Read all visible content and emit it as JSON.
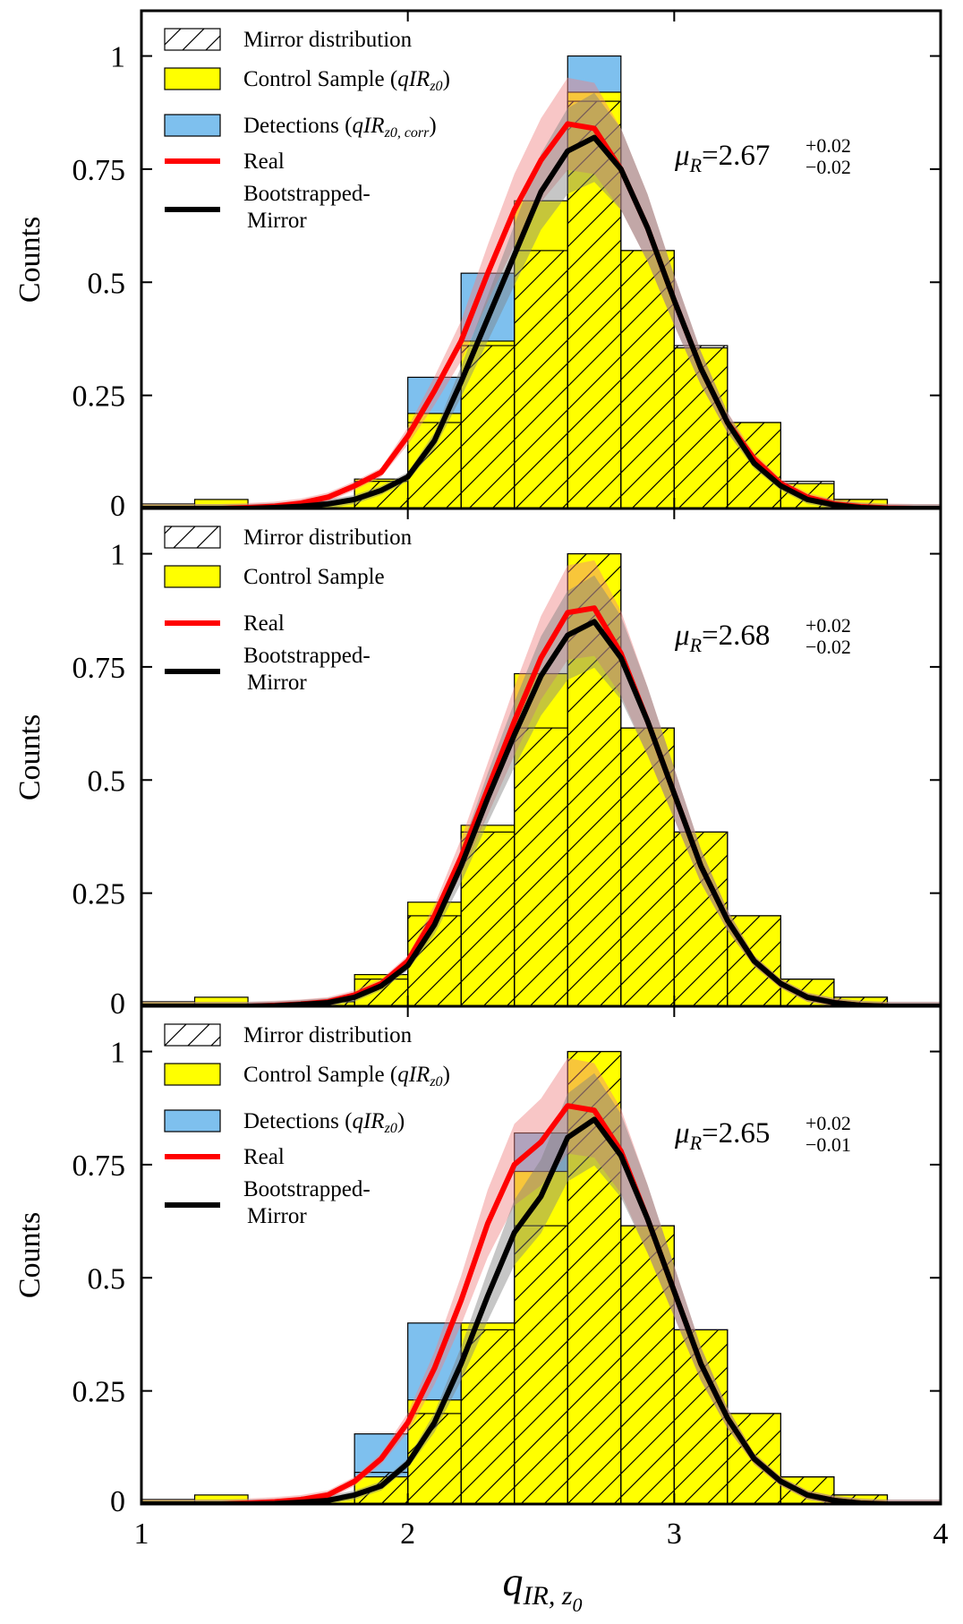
{
  "chart_data": [
    {
      "type": "bar",
      "panel": "top",
      "ylabel": "Counts",
      "xlim": [
        1,
        4
      ],
      "ylim": [
        0,
        1.1
      ],
      "yticks": [
        "0",
        "0.25",
        "0.5",
        "0.75",
        "1"
      ],
      "bin_edges": [
        1.0,
        1.2,
        1.4,
        1.6,
        1.8,
        2.0,
        2.2,
        2.4,
        2.6,
        2.8,
        3.0,
        3.2,
        3.4,
        3.6,
        3.8
      ],
      "series": [
        {
          "name": "Mirror distribution",
          "values": [
            0,
            0,
            0,
            0,
            0.06,
            0.19,
            0.36,
            0.57,
            0.9,
            0.57,
            0.36,
            0.19,
            0.06,
            0.02
          ]
        },
        {
          "name": "Control Sample",
          "values": [
            0.01,
            0.02,
            0.005,
            0.015,
            0.065,
            0.21,
            0.37,
            0.68,
            0.92,
            0.57,
            0.355,
            0.19,
            0.055,
            0.02
          ]
        },
        {
          "name": "Detections",
          "values": [
            0,
            0,
            0,
            0,
            0,
            0.29,
            0.52,
            0,
            1.0,
            0,
            0,
            0,
            0,
            0
          ]
        }
      ],
      "lines": [
        {
          "name": "Real",
          "x": [
            1.0,
            1.1,
            1.2,
            1.3,
            1.4,
            1.5,
            1.6,
            1.7,
            1.8,
            1.9,
            2.0,
            2.1,
            2.2,
            2.3,
            2.4,
            2.5,
            2.6,
            2.7,
            2.8,
            2.9,
            3.0,
            3.1,
            3.2,
            3.3,
            3.4,
            3.5,
            3.6,
            3.7,
            3.8,
            3.9,
            4.0
          ],
          "y": [
            0,
            0,
            0,
            0,
            0.002,
            0.005,
            0.012,
            0.025,
            0.05,
            0.08,
            0.16,
            0.26,
            0.37,
            0.52,
            0.66,
            0.77,
            0.85,
            0.84,
            0.75,
            0.62,
            0.46,
            0.31,
            0.19,
            0.11,
            0.055,
            0.025,
            0.01,
            0.004,
            0.001,
            0,
            0
          ]
        },
        {
          "name": "Bootstrapped-Mirror",
          "x": [
            1.0,
            1.1,
            1.2,
            1.3,
            1.4,
            1.5,
            1.6,
            1.7,
            1.8,
            1.9,
            2.0,
            2.1,
            2.2,
            2.3,
            2.4,
            2.5,
            2.6,
            2.7,
            2.8,
            2.9,
            3.0,
            3.1,
            3.2,
            3.3,
            3.4,
            3.5,
            3.6,
            3.7,
            3.8,
            3.9,
            4.0
          ],
          "y": [
            0,
            0,
            0,
            0,
            0,
            0.002,
            0.005,
            0.01,
            0.02,
            0.04,
            0.07,
            0.15,
            0.28,
            0.42,
            0.56,
            0.7,
            0.79,
            0.82,
            0.75,
            0.62,
            0.46,
            0.31,
            0.19,
            0.1,
            0.05,
            0.02,
            0.008,
            0.002,
            0,
            0,
            0
          ]
        }
      ],
      "legend": [
        "Mirror distribution",
        "Control Sample",
        "Detections",
        "Real",
        "Bootstrapped-",
        "Mirror"
      ],
      "control_math": "qIR",
      "control_math_sub": "z0",
      "detections_math": "qIR",
      "detections_math_sub": "z0, corr",
      "mu_prefix": "μ",
      "mu_sub": "R",
      "mu_value": "=2.67",
      "mu_plus": "+0.02",
      "mu_minus": "−0.02"
    },
    {
      "type": "bar",
      "panel": "middle",
      "ylabel": "Counts",
      "xlim": [
        1,
        4
      ],
      "ylim": [
        0,
        1.1
      ],
      "yticks": [
        "0",
        "0.25",
        "0.5",
        "0.75",
        "1"
      ],
      "bin_edges": [
        1.0,
        1.2,
        1.4,
        1.6,
        1.8,
        2.0,
        2.2,
        2.4,
        2.6,
        2.8,
        3.0,
        3.2,
        3.4,
        3.6,
        3.8
      ],
      "series": [
        {
          "name": "Mirror distribution",
          "values": [
            0,
            0,
            0,
            0.01,
            0.06,
            0.2,
            0.385,
            0.615,
            1.0,
            0.615,
            0.385,
            0.2,
            0.06,
            0.02
          ]
        },
        {
          "name": "Control Sample",
          "values": [
            0.01,
            0.02,
            0.005,
            0.01,
            0.07,
            0.23,
            0.4,
            0.735,
            1.0,
            0.615,
            0.385,
            0.2,
            0.06,
            0.02
          ]
        }
      ],
      "lines": [
        {
          "name": "Real",
          "x": [
            1.0,
            1.1,
            1.2,
            1.3,
            1.4,
            1.5,
            1.6,
            1.7,
            1.8,
            1.9,
            2.0,
            2.1,
            2.2,
            2.3,
            2.4,
            2.5,
            2.6,
            2.7,
            2.8,
            2.9,
            3.0,
            3.1,
            3.2,
            3.3,
            3.4,
            3.5,
            3.6,
            3.7,
            3.8,
            3.9,
            4.0
          ],
          "y": [
            0,
            0,
            0,
            0,
            0,
            0.002,
            0.005,
            0.01,
            0.025,
            0.05,
            0.1,
            0.2,
            0.33,
            0.48,
            0.63,
            0.77,
            0.87,
            0.88,
            0.78,
            0.63,
            0.47,
            0.31,
            0.19,
            0.1,
            0.05,
            0.02,
            0.008,
            0.002,
            0,
            0,
            0
          ]
        },
        {
          "name": "Bootstrapped-Mirror",
          "x": [
            1.0,
            1.1,
            1.2,
            1.3,
            1.4,
            1.5,
            1.6,
            1.7,
            1.8,
            1.9,
            2.0,
            2.1,
            2.2,
            2.3,
            2.4,
            2.5,
            2.6,
            2.7,
            2.8,
            2.9,
            3.0,
            3.1,
            3.2,
            3.3,
            3.4,
            3.5,
            3.6,
            3.7,
            3.8,
            3.9,
            4.0
          ],
          "y": [
            0,
            0,
            0,
            0,
            0,
            0.001,
            0.004,
            0.008,
            0.02,
            0.045,
            0.09,
            0.18,
            0.31,
            0.46,
            0.6,
            0.73,
            0.82,
            0.85,
            0.77,
            0.63,
            0.47,
            0.31,
            0.19,
            0.1,
            0.05,
            0.02,
            0.008,
            0.002,
            0,
            0,
            0
          ]
        }
      ],
      "legend": [
        "Mirror distribution",
        "Control Sample",
        "Real",
        "Bootstrapped-",
        "Mirror"
      ],
      "mu_prefix": "μ",
      "mu_sub": "R",
      "mu_value": "=2.68",
      "mu_plus": "+0.02",
      "mu_minus": "−0.02"
    },
    {
      "type": "bar",
      "panel": "bottom",
      "ylabel": "Counts",
      "xlabel": "qIR, z0",
      "xlabel_main": "q",
      "xlabel_sub": "IR, z",
      "xlabel_subsub": "0",
      "xlim": [
        1,
        4
      ],
      "ylim": [
        0,
        1.1
      ],
      "xticks": [
        "1",
        "2",
        "3",
        "4"
      ],
      "yticks": [
        "0",
        "0.25",
        "0.5",
        "0.75",
        "1"
      ],
      "bin_edges": [
        1.0,
        1.2,
        1.4,
        1.6,
        1.8,
        2.0,
        2.2,
        2.4,
        2.6,
        2.8,
        3.0,
        3.2,
        3.4,
        3.6,
        3.8
      ],
      "series": [
        {
          "name": "Mirror distribution",
          "values": [
            0,
            0,
            0,
            0,
            0.07,
            0.2,
            0.385,
            0.615,
            1.0,
            0.615,
            0.385,
            0.2,
            0.06,
            0.02
          ]
        },
        {
          "name": "Control Sample",
          "values": [
            0.01,
            0.02,
            0.005,
            0.015,
            0.06,
            0.23,
            0.4,
            0.735,
            1.0,
            0.615,
            0.385,
            0.2,
            0.06,
            0.02
          ]
        },
        {
          "name": "Detections",
          "values": [
            0,
            0,
            0,
            0,
            0.155,
            0.4,
            0,
            0.82,
            0,
            0,
            0,
            0,
            0,
            0
          ]
        }
      ],
      "lines": [
        {
          "name": "Real",
          "x": [
            1.0,
            1.1,
            1.2,
            1.3,
            1.4,
            1.5,
            1.6,
            1.7,
            1.8,
            1.9,
            2.0,
            2.1,
            2.2,
            2.3,
            2.4,
            2.5,
            2.6,
            2.7,
            2.8,
            2.9,
            3.0,
            3.1,
            3.2,
            3.3,
            3.4,
            3.5,
            3.6,
            3.7,
            3.8,
            3.9,
            4.0
          ],
          "y": [
            0,
            0,
            0,
            0,
            0.002,
            0.005,
            0.01,
            0.02,
            0.05,
            0.1,
            0.18,
            0.3,
            0.45,
            0.62,
            0.75,
            0.8,
            0.88,
            0.87,
            0.78,
            0.63,
            0.47,
            0.31,
            0.19,
            0.1,
            0.05,
            0.02,
            0.008,
            0.002,
            0,
            0,
            0
          ]
        },
        {
          "name": "Bootstrapped-Mirror",
          "x": [
            1.0,
            1.1,
            1.2,
            1.3,
            1.4,
            1.5,
            1.6,
            1.7,
            1.8,
            1.9,
            2.0,
            2.1,
            2.2,
            2.3,
            2.4,
            2.5,
            2.6,
            2.7,
            2.8,
            2.9,
            3.0,
            3.1,
            3.2,
            3.3,
            3.4,
            3.5,
            3.6,
            3.7,
            3.8,
            3.9,
            4.0
          ],
          "y": [
            0,
            0,
            0,
            0,
            0,
            0.001,
            0.004,
            0.008,
            0.02,
            0.04,
            0.09,
            0.18,
            0.31,
            0.46,
            0.6,
            0.68,
            0.81,
            0.85,
            0.77,
            0.63,
            0.47,
            0.31,
            0.19,
            0.1,
            0.05,
            0.02,
            0.008,
            0.002,
            0,
            0,
            0
          ]
        }
      ],
      "legend": [
        "Mirror distribution",
        "Control Sample",
        "Detections",
        "Real",
        "Bootstrapped-",
        "Mirror"
      ],
      "control_math": "qIR",
      "control_math_sub": "z0",
      "detections_math": "qIR",
      "detections_math_sub": "z0",
      "mu_prefix": "μ",
      "mu_sub": "R",
      "mu_value": "=2.65",
      "mu_plus": "+0.02",
      "mu_minus": "−0.01"
    }
  ],
  "colors": {
    "control": "#ffff00",
    "detections": "#7ec0ee",
    "real": "#ff0000",
    "bootstrap": "#000000",
    "real_band": "#f08080",
    "boot_band": "#808080"
  }
}
